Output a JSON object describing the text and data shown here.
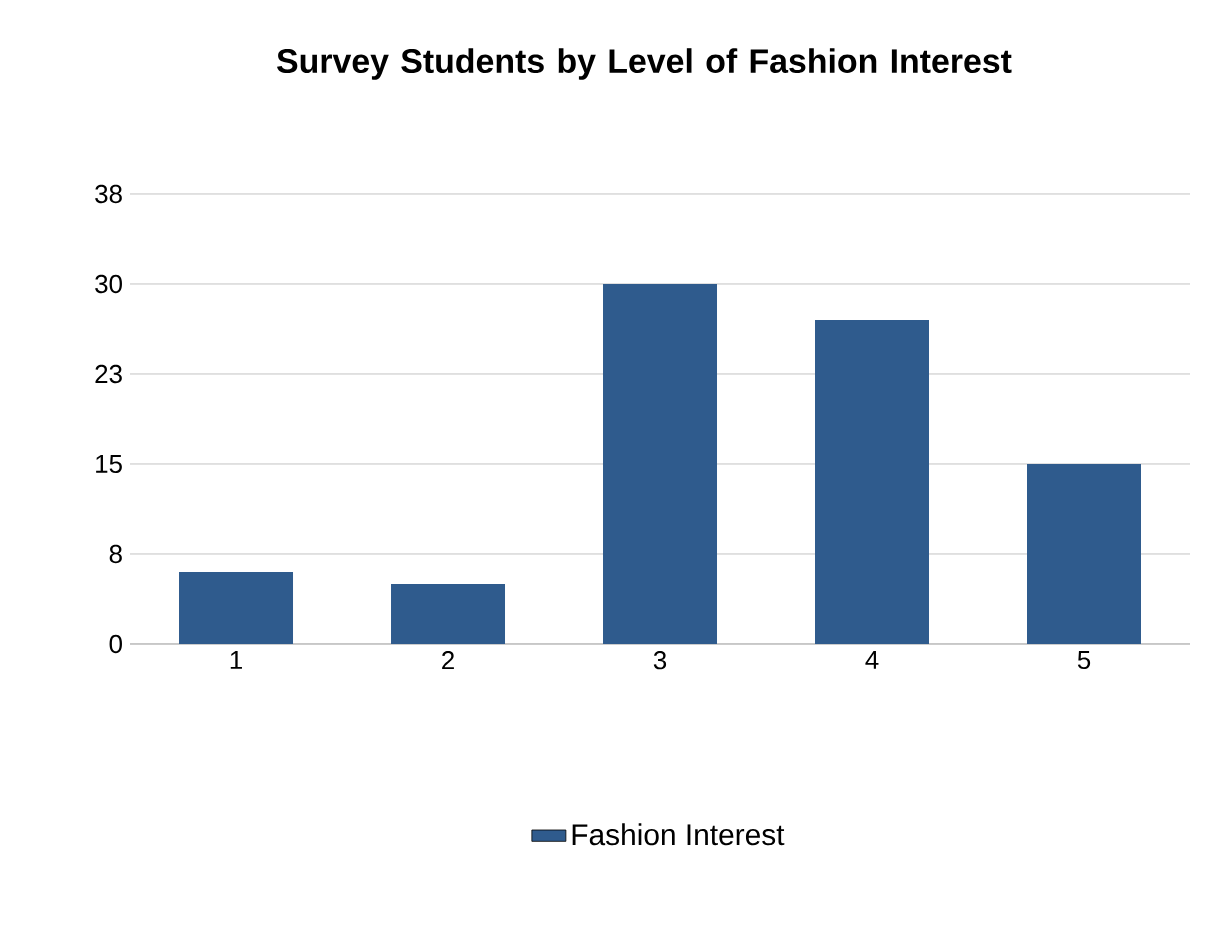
{
  "chart_data": {
    "type": "bar",
    "title": "Survey Students by Level of Fashion Interest",
    "categories": [
      "1",
      "2",
      "3",
      "4",
      "5"
    ],
    "series": [
      {
        "name": "Fashion Interest",
        "color": "#2f5b8d",
        "values": [
          6,
          5,
          30,
          27,
          15
        ]
      }
    ],
    "ylim": [
      0,
      37.5
    ],
    "yticks": [
      0,
      {
        "value": 7.5,
        "label": "8"
      },
      15,
      {
        "value": 22.5,
        "label": "23"
      },
      30,
      {
        "value": 37.5,
        "label": "38"
      }
    ],
    "grid": "y",
    "legend": "bottom"
  }
}
